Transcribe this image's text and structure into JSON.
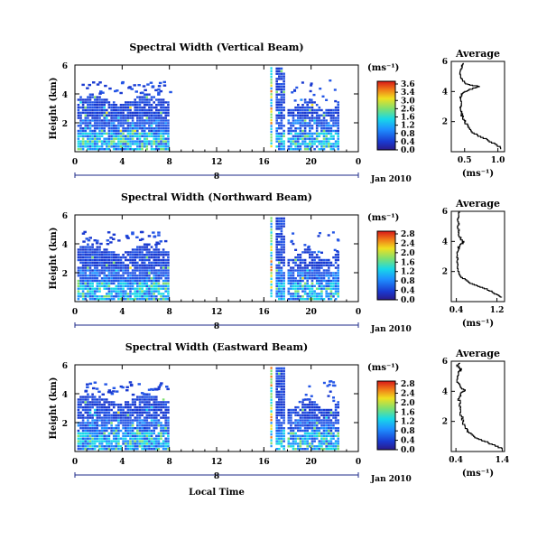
{
  "date_label": "Jan 2010",
  "day_label": "8",
  "xlabel": "Local Time",
  "chart_data": [
    {
      "type": "heatmap",
      "title": "Spectral Width (Vertical Beam)",
      "ylabel": "Height (km)",
      "x_ticks": [
        "0",
        "4",
        "8",
        "12",
        "16",
        "20",
        "0"
      ],
      "xlim": [
        0,
        24
      ],
      "y_ticks": [
        "6",
        "4",
        "2"
      ],
      "ylim": [
        0,
        6
      ],
      "colorbar_label": "(ms⁻¹)",
      "colorbar_ticks": [
        "3.6",
        "3.4",
        "3.0",
        "2.6",
        "1.6",
        "1.2",
        "0.8",
        "0.4",
        "0.0"
      ],
      "colorbar_range": [
        0,
        3.6
      ],
      "profile": {
        "title": "Average",
        "xlabel": "(ms⁻¹)",
        "x_ticks": [
          "0.5",
          "1.0"
        ],
        "xlim": [
          0.3,
          1.1
        ],
        "y_ticks": [
          "6",
          "4",
          "2"
        ],
        "ylim": [
          0,
          6
        ],
        "points": [
          [
            1.05,
            0.2
          ],
          [
            0.98,
            0.5
          ],
          [
            0.85,
            0.8
          ],
          [
            0.7,
            1.1
          ],
          [
            0.6,
            1.4
          ],
          [
            0.55,
            1.7
          ],
          [
            0.5,
            2.0
          ],
          [
            0.47,
            2.3
          ],
          [
            0.45,
            2.6
          ],
          [
            0.44,
            2.9
          ],
          [
            0.45,
            3.2
          ],
          [
            0.44,
            3.5
          ],
          [
            0.46,
            3.8
          ],
          [
            0.5,
            4.0
          ],
          [
            0.62,
            4.2
          ],
          [
            0.72,
            4.35
          ],
          [
            0.55,
            4.5
          ],
          [
            0.47,
            4.75
          ],
          [
            0.44,
            5.0
          ],
          [
            0.43,
            5.3
          ],
          [
            0.46,
            5.6
          ],
          [
            0.48,
            5.9
          ]
        ]
      }
    },
    {
      "type": "heatmap",
      "title": "Spectral Width (Northward Beam)",
      "ylabel": "Height (km)",
      "x_ticks": [
        "0",
        "4",
        "8",
        "12",
        "16",
        "20",
        "0"
      ],
      "xlim": [
        0,
        24
      ],
      "y_ticks": [
        "6",
        "4",
        "2"
      ],
      "ylim": [
        0,
        6
      ],
      "colorbar_label": "(ms⁻¹)",
      "colorbar_ticks": [
        "2.8",
        "2.4",
        "2.0",
        "1.6",
        "1.2",
        "0.8",
        "0.4",
        "0.0"
      ],
      "colorbar_range": [
        0,
        2.8
      ],
      "profile": {
        "title": "Average",
        "xlabel": "(ms⁻¹)",
        "x_ticks": [
          "0.4",
          "1.2"
        ],
        "xlim": [
          0.3,
          1.35
        ],
        "y_ticks": [
          "6",
          "4",
          "2"
        ],
        "ylim": [
          0,
          6
        ],
        "points": [
          [
            1.3,
            0.3
          ],
          [
            1.2,
            0.5
          ],
          [
            1.1,
            0.7
          ],
          [
            0.95,
            0.9
          ],
          [
            0.8,
            1.1
          ],
          [
            0.65,
            1.3
          ],
          [
            0.52,
            1.6
          ],
          [
            0.45,
            1.9
          ],
          [
            0.42,
            2.3
          ],
          [
            0.41,
            2.7
          ],
          [
            0.42,
            3.1
          ],
          [
            0.44,
            3.5
          ],
          [
            0.47,
            3.8
          ],
          [
            0.55,
            4.0
          ],
          [
            0.48,
            4.2
          ],
          [
            0.44,
            4.5
          ],
          [
            0.43,
            4.9
          ],
          [
            0.44,
            5.3
          ],
          [
            0.45,
            5.7
          ],
          [
            0.46,
            6.0
          ]
        ]
      }
    },
    {
      "type": "heatmap",
      "title": "Spectral Width (Eastward Beam)",
      "ylabel": "Height (km)",
      "x_ticks": [
        "0",
        "4",
        "8",
        "12",
        "16",
        "20",
        "0"
      ],
      "xlim": [
        0,
        24
      ],
      "y_ticks": [
        "6",
        "4",
        "2"
      ],
      "ylim": [
        0,
        6
      ],
      "colorbar_label": "(ms⁻¹)",
      "colorbar_ticks": [
        "2.8",
        "2.4",
        "2.0",
        "1.6",
        "1.2",
        "0.8",
        "0.4",
        "0.0"
      ],
      "colorbar_range": [
        0,
        2.8
      ],
      "profile": {
        "title": "Average",
        "xlabel": "(ms⁻¹)",
        "x_ticks": [
          "0.4",
          "1.4"
        ],
        "xlim": [
          0.3,
          1.45
        ],
        "y_ticks": [
          "6",
          "4",
          "2"
        ],
        "ylim": [
          0,
          6
        ],
        "points": [
          [
            1.4,
            0.2
          ],
          [
            1.25,
            0.4
          ],
          [
            1.1,
            0.6
          ],
          [
            0.95,
            0.8
          ],
          [
            0.8,
            1.0
          ],
          [
            0.68,
            1.3
          ],
          [
            0.6,
            1.6
          ],
          [
            0.55,
            2.0
          ],
          [
            0.52,
            2.4
          ],
          [
            0.5,
            2.8
          ],
          [
            0.48,
            3.2
          ],
          [
            0.47,
            3.6
          ],
          [
            0.5,
            3.9
          ],
          [
            0.6,
            4.1
          ],
          [
            0.5,
            4.3
          ],
          [
            0.45,
            4.6
          ],
          [
            0.43,
            5.0
          ],
          [
            0.45,
            5.3
          ],
          [
            0.52,
            5.5
          ],
          [
            0.42,
            5.7
          ],
          [
            0.48,
            5.9
          ]
        ]
      }
    }
  ]
}
